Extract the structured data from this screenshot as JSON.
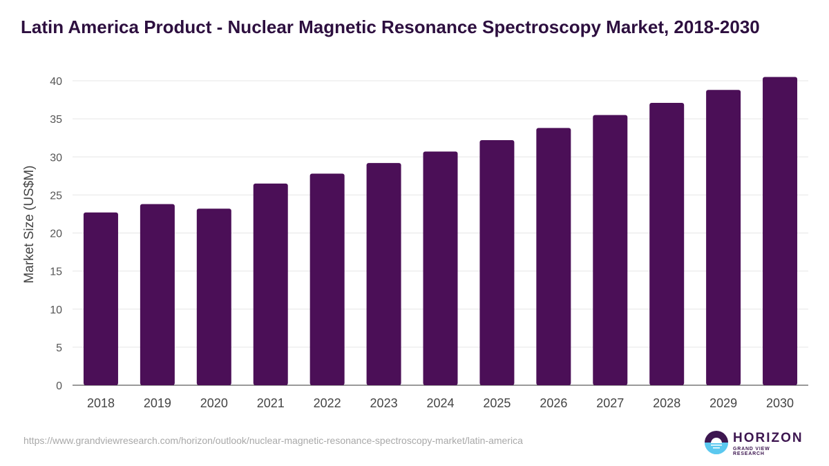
{
  "chart_data": {
    "type": "bar",
    "title": "Latin America Product - Nuclear Magnetic Resonance Spectroscopy Market, 2018-2030",
    "xlabel": "",
    "ylabel": "Market Size (US$M)",
    "ylim": [
      0,
      40
    ],
    "yticks": [
      0,
      5,
      10,
      15,
      20,
      25,
      30,
      35,
      40
    ],
    "grid": true,
    "categories": [
      "2018",
      "2019",
      "2020",
      "2021",
      "2022",
      "2023",
      "2024",
      "2025",
      "2026",
      "2027",
      "2028",
      "2029",
      "2030"
    ],
    "values": [
      22.7,
      23.8,
      23.2,
      26.5,
      27.8,
      29.2,
      30.7,
      32.2,
      33.8,
      35.5,
      37.1,
      38.8,
      40.5
    ],
    "bar_color": "#4b0f57"
  },
  "footer": {
    "source_url": "https://www.grandviewresearch.com/horizon/outlook/nuclear-magnetic-resonance-spectroscopy-market/latin-america",
    "logo_name": "HORIZON",
    "logo_sub": "GRAND VIEW RESEARCH"
  }
}
